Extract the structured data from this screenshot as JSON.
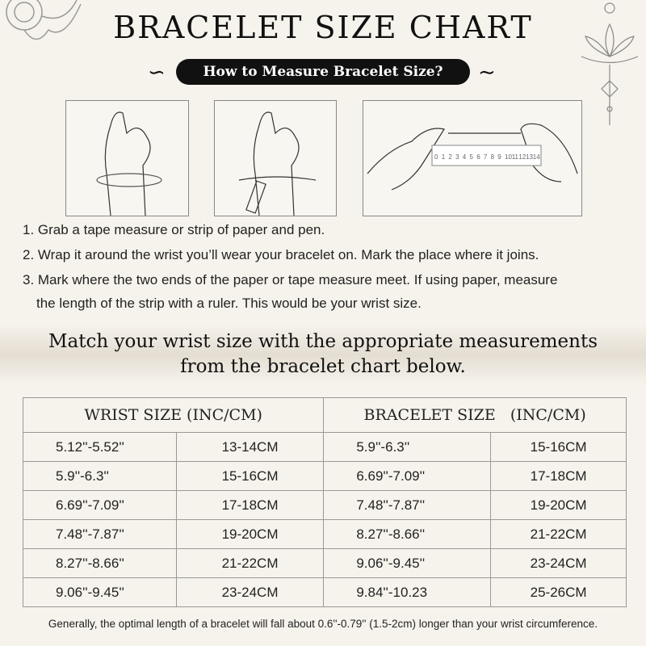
{
  "title": "BRACELET SIZE CHART",
  "subtitle": "How to Measure Bracelet Size?",
  "ruler_labels": [
    "0",
    "1",
    "2",
    "3",
    "4",
    "5",
    "6",
    "7",
    "8",
    "9",
    "10",
    "11",
    "12",
    "13",
    "14"
  ],
  "steps": [
    "1. Grab a tape measure or strip of paper and pen.",
    "2. Wrap it around the wrist you’ll wear your bracelet on. Mark the place where it joins.",
    "3. Mark where the two ends of the paper or tape measure meet. If using paper, measure",
    "the length of the strip with a ruler. This would be your wrist size."
  ],
  "match_text": [
    "Match your wrist size with the appropriate measurements",
    "from the bracelet chart below."
  ],
  "table": {
    "headers": [
      "WRIST SIZE (INC/CM)",
      "BRACELET SIZE   (INC/CM)"
    ],
    "rows": [
      [
        "5.12''-5.52''",
        "13-14CM",
        "5.9''-6.3''",
        "15-16CM"
      ],
      [
        "5.9''-6.3''",
        "15-16CM",
        "6.69''-7.09''",
        "17-18CM"
      ],
      [
        "6.69''-7.09''",
        "17-18CM",
        "7.48''-7.87''",
        "19-20CM"
      ],
      [
        "7.48''-7.87''",
        "19-20CM",
        "8.27''-8.66''",
        "21-22CM"
      ],
      [
        "8.27''-8.66''",
        "21-22CM",
        "9.06''-9.45''",
        "23-24CM"
      ],
      [
        "9.06''-9.45''",
        "23-24CM",
        "9.84''-10.23",
        "25-26CM"
      ]
    ]
  },
  "note": "Generally, the optimal length of a bracelet will fall about 0.6''-0.79'' (1.5-2cm) longer than your wrist circumference."
}
